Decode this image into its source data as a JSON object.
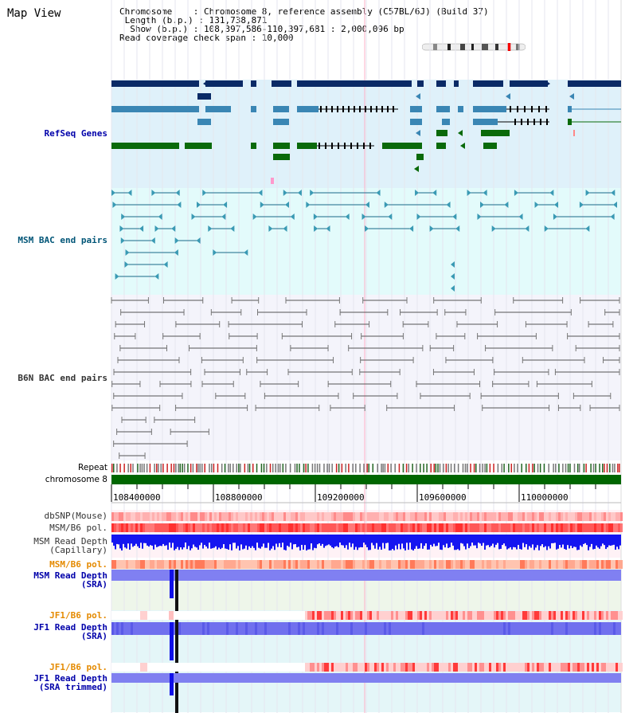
{
  "header": {
    "title": "Map View",
    "info_lines": [
      "Chromosome    : Chromosome 8, reference assembly (C57BL/6J) (Build 37)",
      " Length (b.p.) : 131,738,871",
      "  Show (b.p.) : 108,397,586-110,397,681 : 2,000,096 bp",
      "Read coverage check span : 10,000"
    ]
  },
  "tracks": {
    "refseq": "RefSeq Genes",
    "msm_bac": "MSM BAC end pairs",
    "b6n_bac": "B6N BAC end pairs",
    "repeat": "Repeat",
    "chromosome": "chromosome 8",
    "dbsnp": "dbSNP(Mouse)",
    "msm_b6_pol_1": "MSM/B6 pol.",
    "msm_depth_cap_1": "MSM Read Depth",
    "msm_depth_cap_2": "(Capillary)",
    "msm_b6_pol_2": "MSM/B6 pol.",
    "msm_depth_sra_1": "MSM Read Depth",
    "msm_depth_sra_2": "(SRA)",
    "jf1_pol_1": "JF1/B6 pol.",
    "jf1_depth_sra_1": "JF1 Read Depth",
    "jf1_depth_sra_2": "(SRA)",
    "jf1_pol_2": "JF1/B6 pol.",
    "jf1_depth_trim_1": "JF1 Read Depth",
    "jf1_depth_trim_2": "(SRA trimmed)"
  },
  "axis": {
    "ticks": [
      "108400000",
      "108800000",
      "109200000",
      "109600000",
      "110000000"
    ]
  },
  "colors": {
    "refseq_bg": "#dff1fa",
    "msm_bg": "#e3fbfb",
    "b6n_bg": "#f4f4fb",
    "gene_dark": "#0a2a66",
    "gene_mid": "#3a86b4",
    "gene_green": "#0a6a0a",
    "msm_line": "#1a6a8a",
    "b6n_line": "#555555",
    "chrom": "#006600",
    "depth": "#2020ee"
  }
}
